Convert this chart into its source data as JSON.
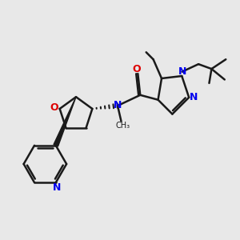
{
  "background_color": "#e8e8e8",
  "bond_color": "#1a1a1a",
  "n_color": "#0000ee",
  "o_color": "#dd0000",
  "bond_width": 1.8,
  "figsize": [
    3.0,
    3.0
  ],
  "dpi": 100,
  "xlim": [
    0,
    10
  ],
  "ylim": [
    0,
    10
  ]
}
